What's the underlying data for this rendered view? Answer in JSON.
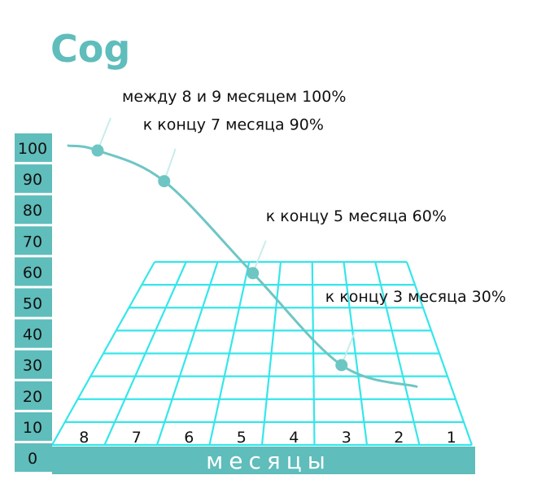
{
  "colors": {
    "accent": "#5fbdbb",
    "grid": "#35e6ea",
    "curve": "#6ec6c4",
    "text": "#111111"
  },
  "chart_data": {
    "type": "line",
    "title": "Cog",
    "xlabel": "месяцы",
    "ylabel": "",
    "ylim": [
      0,
      100
    ],
    "y_ticks": [
      "0",
      "10",
      "20",
      "30",
      "40",
      "50",
      "60",
      "70",
      "80",
      "90",
      "100"
    ],
    "x_ticks": [
      "8",
      "7",
      "6",
      "5",
      "4",
      "3",
      "2",
      "1"
    ],
    "series": [
      {
        "values": [
          {
            "x": 8.5,
            "y": 100
          },
          {
            "x": 7,
            "y": 90
          },
          {
            "x": 5,
            "y": 60
          },
          {
            "x": 3,
            "y": 30
          }
        ]
      }
    ],
    "annotations": [
      {
        "text": "между 8 и 9 месяцем 100%",
        "x": 8.5,
        "y": 100
      },
      {
        "text": "к концу 7 месяца 90%",
        "x": 7,
        "y": 90
      },
      {
        "text": "к концу 5 месяца 60%",
        "x": 5,
        "y": 60
      },
      {
        "text": "к концу 3 месяца 30%",
        "x": 3,
        "y": 30
      }
    ]
  }
}
